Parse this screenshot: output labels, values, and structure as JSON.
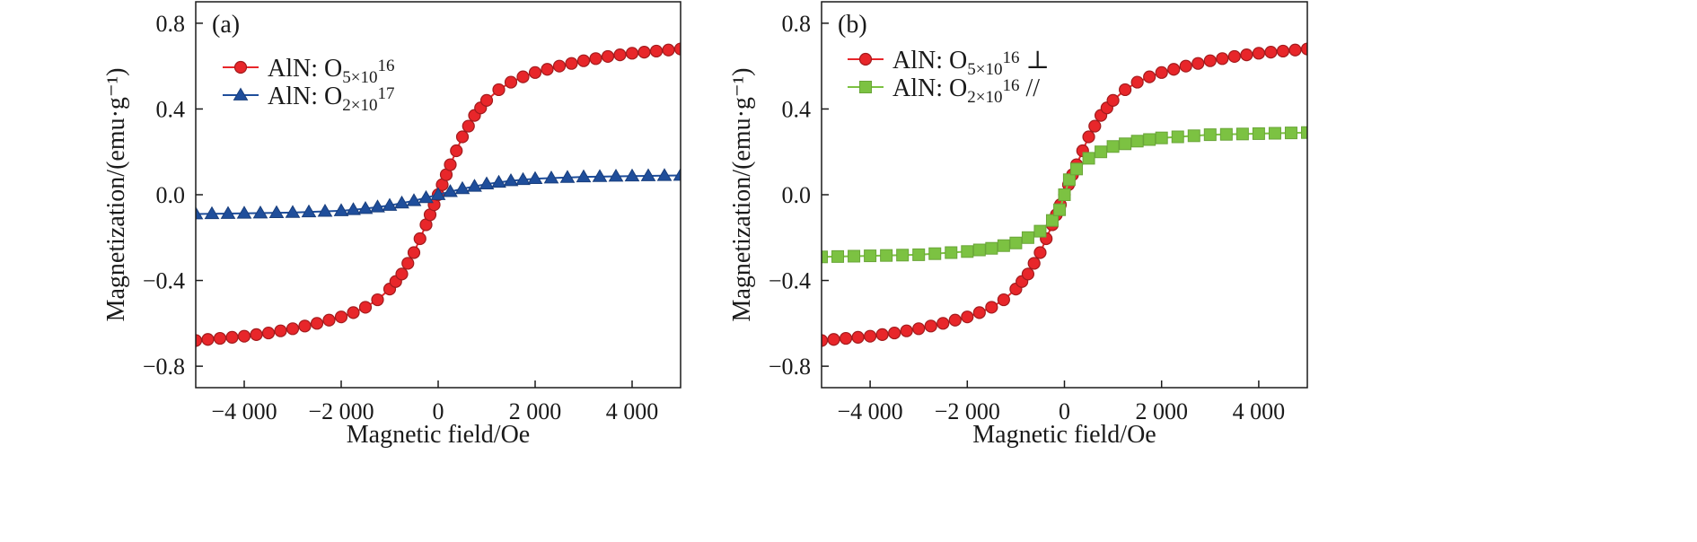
{
  "chart_data": [
    {
      "type": "line",
      "panel_label": "(a)",
      "xlabel": "Magnetic field/Oe",
      "ylabel": "Magnetization/(emu·g⁻¹)",
      "xlim": [
        -5000,
        5000
      ],
      "ylim": [
        -0.9,
        0.9
      ],
      "xticks": [
        -4000,
        -2000,
        0,
        2000,
        4000
      ],
      "xtick_labels": [
        "−4 000",
        "−2 000",
        "0",
        "2 000",
        "4 000"
      ],
      "yticks": [
        -0.8,
        -0.4,
        0.0,
        0.4,
        0.8
      ],
      "ytick_labels": [
        "−0.8",
        "−0.4",
        "0.0",
        "0.4",
        "0.8"
      ],
      "grid": false,
      "legend_position": "top-left",
      "series": [
        {
          "name": "AlN: O5×1016",
          "legend_main": "AlN: O",
          "legend_sub": "5×10",
          "legend_sup": "16",
          "legend_suffix": "",
          "color": "#e8262a",
          "marker": "circle",
          "x": [
            -5000,
            -4500,
            -4000,
            -3500,
            -3000,
            -2500,
            -2000,
            -1750,
            -1500,
            -1250,
            -1000,
            -750,
            -500,
            -250,
            0,
            250,
            500,
            750,
            1000,
            1250,
            1500,
            1750,
            2000,
            2500,
            3000,
            3500,
            4000,
            4500,
            5000
          ],
          "y": [
            -0.68,
            -0.67,
            -0.66,
            -0.645,
            -0.625,
            -0.6,
            -0.57,
            -0.55,
            -0.525,
            -0.49,
            -0.44,
            -0.37,
            -0.27,
            -0.14,
            0.0,
            0.14,
            0.27,
            0.37,
            0.44,
            0.49,
            0.525,
            0.55,
            0.57,
            0.6,
            0.625,
            0.645,
            0.66,
            0.67,
            0.68
          ]
        },
        {
          "name": "AlN: O2×1017",
          "legend_main": "AlN: O",
          "legend_sub": "2×10",
          "legend_sup": "17",
          "legend_suffix": "",
          "color": "#1f4e9b",
          "marker": "triangle",
          "x": [
            -5000,
            -4000,
            -3000,
            -2000,
            -1500,
            -1000,
            -500,
            0,
            500,
            1000,
            1500,
            2000,
            3000,
            4000,
            5000
          ],
          "y": [
            -0.09,
            -0.087,
            -0.083,
            -0.075,
            -0.065,
            -0.05,
            -0.028,
            0.0,
            0.028,
            0.05,
            0.065,
            0.075,
            0.083,
            0.087,
            0.09
          ]
        }
      ]
    },
    {
      "type": "line",
      "panel_label": "(b)",
      "xlabel": "Magnetic field/Oe",
      "ylabel": "Magnetization/(emu·g⁻¹)",
      "xlim": [
        -5000,
        5000
      ],
      "ylim": [
        -0.9,
        0.9
      ],
      "xticks": [
        -4000,
        -2000,
        0,
        2000,
        4000
      ],
      "xtick_labels": [
        "−4 000",
        "−2 000",
        "0",
        "2 000",
        "4 000"
      ],
      "yticks": [
        -0.8,
        -0.4,
        0.0,
        0.4,
        0.8
      ],
      "ytick_labels": [
        "−0.8",
        "−0.4",
        "0.0",
        "0.4",
        "0.8"
      ],
      "grid": false,
      "legend_position": "top-left",
      "series": [
        {
          "name": "AlN: O5×1016 ⊥",
          "legend_main": "AlN: O",
          "legend_sub": "5×10",
          "legend_sup": "16",
          "legend_suffix": " ⊥",
          "color": "#e8262a",
          "marker": "circle",
          "x": [
            -5000,
            -4500,
            -4000,
            -3500,
            -3000,
            -2500,
            -2000,
            -1750,
            -1500,
            -1250,
            -1000,
            -750,
            -500,
            -250,
            0,
            250,
            500,
            750,
            1000,
            1250,
            1500,
            1750,
            2000,
            2500,
            3000,
            3500,
            4000,
            4500,
            5000
          ],
          "y": [
            -0.68,
            -0.67,
            -0.66,
            -0.645,
            -0.625,
            -0.6,
            -0.57,
            -0.55,
            -0.525,
            -0.49,
            -0.44,
            -0.37,
            -0.27,
            -0.14,
            0.0,
            0.14,
            0.27,
            0.37,
            0.44,
            0.49,
            0.525,
            0.55,
            0.57,
            0.6,
            0.625,
            0.645,
            0.66,
            0.67,
            0.68
          ]
        },
        {
          "name": "AlN: O2×1016 //",
          "legend_main": "AlN: O",
          "legend_sub": "2×10",
          "legend_sup": "16",
          "legend_suffix": " //",
          "color": "#7cc242",
          "marker": "square",
          "x": [
            -5000,
            -4000,
            -3000,
            -2000,
            -1500,
            -1000,
            -750,
            -500,
            -250,
            -100,
            0,
            100,
            250,
            500,
            750,
            1000,
            1500,
            2000,
            3000,
            4000,
            5000
          ],
          "y": [
            -0.29,
            -0.285,
            -0.28,
            -0.265,
            -0.25,
            -0.225,
            -0.2,
            -0.17,
            -0.12,
            -0.07,
            0.0,
            0.07,
            0.12,
            0.17,
            0.2,
            0.225,
            0.25,
            0.265,
            0.28,
            0.285,
            0.29
          ]
        }
      ]
    }
  ]
}
